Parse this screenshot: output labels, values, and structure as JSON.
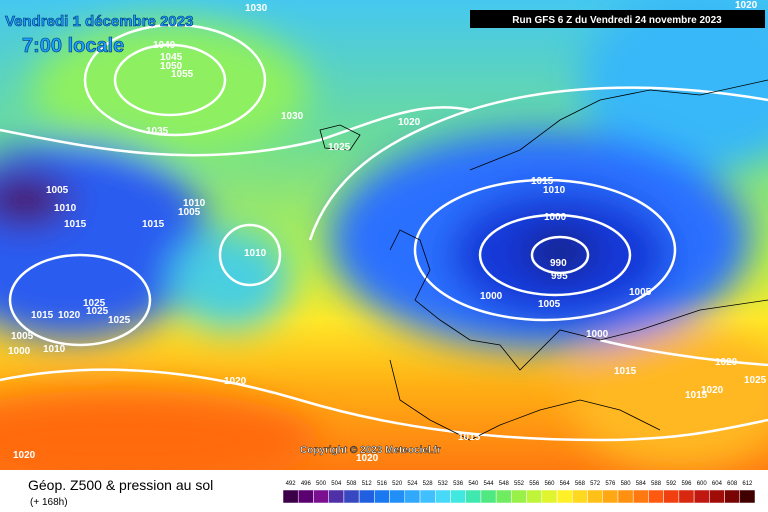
{
  "header": {
    "date": "Vendredi 1 décembre 2023",
    "time": "7:00 locale",
    "run": "Run GFS 6 Z du Vendredi 24 novembre 2023"
  },
  "map": {
    "isobar_labels": [
      1030,
      1020,
      1040,
      1045,
      1050,
      1055,
      1035,
      1030,
      1020,
      1025,
      1015,
      1010,
      1005,
      1010,
      1010,
      1005,
      1015,
      1015,
      1000,
      1010,
      990,
      995,
      1000,
      1005,
      1005,
      1025,
      1025,
      1015,
      1020,
      1025,
      1000,
      1005,
      1000,
      1010,
      1020,
      1015,
      1020,
      1025,
      1020,
      1015,
      1015,
      1020,
      1020
    ],
    "copyright": "Copyright © 2023 Meteociel.fr"
  },
  "footer": {
    "title": "Géop. Z500 & pression au sol",
    "lead": "(+ 168h)",
    "scale": [
      492,
      496,
      500,
      504,
      508,
      512,
      516,
      520,
      524,
      528,
      532,
      536,
      540,
      544,
      548,
      552,
      556,
      560,
      564,
      568,
      572,
      576,
      580,
      584,
      588,
      592,
      596,
      600,
      604,
      608,
      612
    ]
  }
}
